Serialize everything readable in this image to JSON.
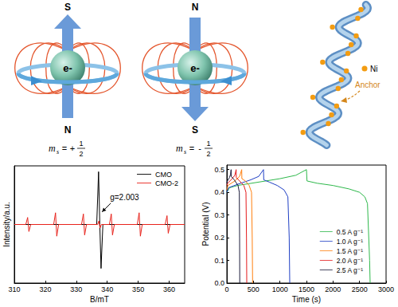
{
  "diagram": {
    "spin_states": [
      {
        "top_pole": "S",
        "bottom_pole": "N",
        "particle": "e-",
        "spin_label": {
          "symbol": "m",
          "subscript": "s",
          "relation": "=",
          "sign": "+",
          "numerator": "1",
          "denominator": "2"
        }
      },
      {
        "top_pole": "N",
        "bottom_pole": "S",
        "particle": "e-",
        "spin_label": {
          "symbol": "m",
          "subscript": "s",
          "relation": "=",
          "sign": "-",
          "numerator": "1",
          "denominator": "2"
        }
      }
    ],
    "helix": {
      "dot_legend": "Ni",
      "annotation": "Anchor"
    }
  },
  "chart_data": [
    {
      "type": "line",
      "x_label": "B/mT",
      "y_label": "Intensity/a.u.",
      "xlim": [
        310,
        365
      ],
      "xticks": [
        310,
        320,
        330,
        340,
        350,
        360
      ],
      "ylim": [
        -1,
        1
      ],
      "tick_labels": "x",
      "legend": "upper right",
      "annotations": [
        {
          "text": "g=2.003",
          "x": 337.8,
          "y": 0.2
        }
      ],
      "series": [
        {
          "name": "CMO",
          "color": "#000000",
          "x": [
            310,
            336.6,
            337.2,
            337.6,
            338.0,
            338.6,
            365
          ],
          "values": [
            0,
            0,
            0.9,
            0,
            -0.75,
            0,
            0
          ]
        },
        {
          "name": "CMO-2",
          "color": "#e8231c",
          "x": [
            310,
            313.7,
            314.3,
            314.7,
            315.3,
            322.7,
            323.3,
            323.7,
            324.3,
            331.7,
            332.3,
            332.7,
            333.3,
            336.9,
            337.3,
            337.7,
            338.1,
            340.7,
            341.3,
            341.7,
            342.3,
            349.7,
            350.3,
            350.7,
            351.3,
            358.7,
            359.3,
            359.7,
            360.3,
            365
          ],
          "values": [
            0,
            0,
            0.12,
            -0.12,
            0,
            0,
            0.2,
            -0.2,
            0,
            0,
            0.18,
            -0.18,
            0,
            0,
            0.06,
            -0.06,
            0,
            0,
            0.18,
            -0.18,
            0,
            0,
            0.2,
            -0.2,
            0,
            0,
            0.15,
            -0.15,
            0,
            0
          ]
        }
      ]
    },
    {
      "type": "line",
      "x_label": "Time (s)",
      "y_label": "Potential (V)",
      "xlim": [
        0,
        3000
      ],
      "xticks": [
        0,
        500,
        1000,
        1500,
        2000,
        2500,
        3000
      ],
      "ylim": [
        0,
        0.52
      ],
      "yticks": [
        {
          "value": 0,
          "label": "0.0"
        },
        0.1,
        0.2,
        0.3,
        0.4,
        0.5
      ],
      "legend": "lower right",
      "series": [
        {
          "name": "0.5 A g⁻¹",
          "color": "#2eb84b",
          "x": [
            0,
            50,
            200,
            600,
            1000,
            1300,
            1500,
            1510,
            1700,
            2000,
            2300,
            2500,
            2600,
            2650,
            2690,
            2700
          ],
          "values": [
            0.4,
            0.42,
            0.43,
            0.445,
            0.46,
            0.475,
            0.5,
            0.45,
            0.44,
            0.43,
            0.415,
            0.4,
            0.38,
            0.35,
            0.1,
            0
          ]
        },
        {
          "name": "1.0 A g⁻¹",
          "color": "#1f3fc4",
          "x": [
            0,
            30,
            200,
            450,
            600,
            690,
            695,
            800,
            950,
            1080,
            1150,
            1175,
            1185
          ],
          "values": [
            0.4,
            0.42,
            0.435,
            0.455,
            0.47,
            0.5,
            0.455,
            0.445,
            0.43,
            0.41,
            0.38,
            0.2,
            0
          ]
        },
        {
          "name": "1.5 A g⁻¹",
          "color": "#ff7f0e",
          "x": [
            0,
            20,
            150,
            240,
            280,
            283,
            350,
            420,
            465,
            478,
            485
          ],
          "values": [
            0.41,
            0.43,
            0.45,
            0.47,
            0.5,
            0.46,
            0.45,
            0.43,
            0.4,
            0.2,
            0
          ]
        },
        {
          "name": "2.0 A g⁻¹",
          "color": "#e41a1c",
          "x": [
            0,
            15,
            100,
            150,
            175,
            178,
            240,
            320,
            360,
            370,
            375
          ],
          "values": [
            0.43,
            0.44,
            0.46,
            0.475,
            0.5,
            0.465,
            0.45,
            0.43,
            0.4,
            0.2,
            0
          ]
        },
        {
          "name": "2.5 A g⁻¹",
          "color": "#1b1b3a",
          "x": [
            0,
            10,
            50,
            70,
            80,
            82,
            140,
            210,
            235,
            240,
            243
          ],
          "values": [
            0.44,
            0.45,
            0.465,
            0.48,
            0.5,
            0.47,
            0.455,
            0.43,
            0.4,
            0.2,
            0
          ]
        }
      ]
    }
  ]
}
